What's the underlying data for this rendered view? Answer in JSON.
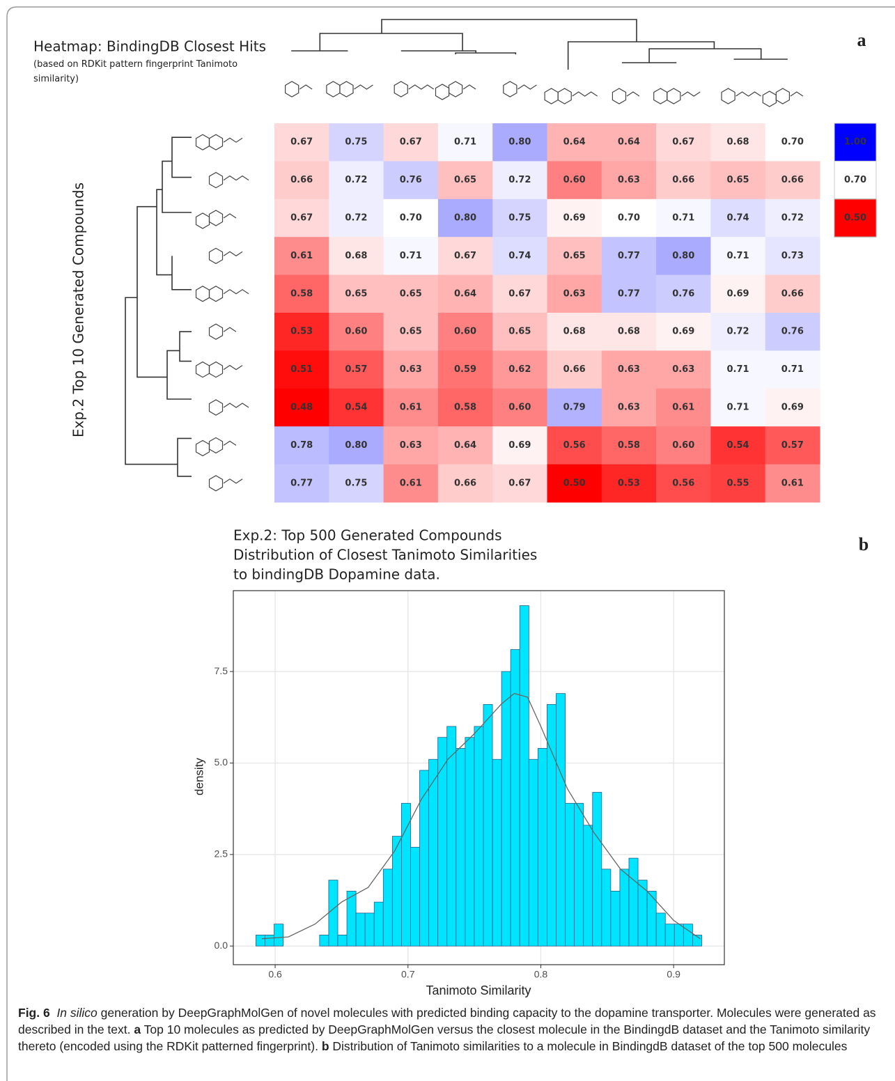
{
  "chart_data": [
    {
      "type": "heatmap",
      "title": "Heatmap: BindingDB Closest Hits",
      "subtitle": "(based on RDKit pattern fingerprint Tanimoto similarity)",
      "y_label": "Exp.2 Top 10 Generated Compounds",
      "values": [
        [
          0.67,
          0.75,
          0.67,
          0.71,
          0.8,
          0.64,
          0.64,
          0.67,
          0.68,
          0.7
        ],
        [
          0.66,
          0.72,
          0.76,
          0.65,
          0.72,
          0.6,
          0.63,
          0.66,
          0.65,
          0.66
        ],
        [
          0.67,
          0.72,
          0.7,
          0.8,
          0.75,
          0.69,
          0.7,
          0.71,
          0.74,
          0.72
        ],
        [
          0.61,
          0.68,
          0.71,
          0.67,
          0.74,
          0.65,
          0.77,
          0.8,
          0.71,
          0.73
        ],
        [
          0.58,
          0.65,
          0.65,
          0.64,
          0.67,
          0.63,
          0.77,
          0.76,
          0.69,
          0.66
        ],
        [
          0.53,
          0.6,
          0.65,
          0.6,
          0.65,
          0.68,
          0.68,
          0.69,
          0.72,
          0.76
        ],
        [
          0.51,
          0.57,
          0.63,
          0.59,
          0.62,
          0.66,
          0.63,
          0.63,
          0.71,
          0.71
        ],
        [
          0.48,
          0.54,
          0.61,
          0.58,
          0.6,
          0.79,
          0.63,
          0.61,
          0.71,
          0.69
        ],
        [
          0.78,
          0.8,
          0.63,
          0.64,
          0.69,
          0.56,
          0.58,
          0.6,
          0.54,
          0.57
        ],
        [
          0.77,
          0.75,
          0.61,
          0.66,
          0.67,
          0.5,
          0.53,
          0.56,
          0.55,
          0.61
        ]
      ],
      "value_labels": [
        [
          "0.67",
          "0.75",
          "0.67",
          "0.71",
          "0.80",
          "0.64",
          "0.64",
          "0.67",
          "0.68",
          "0.70"
        ],
        [
          "0.66",
          "0.72",
          "0.76",
          "0.65",
          "0.72",
          "0.60",
          "0.63",
          "0.66",
          "0.65",
          "0.66"
        ],
        [
          "0.67",
          "0.72",
          "0.70",
          "0.80",
          "0.75",
          "0.69",
          "0.70",
          "0.71",
          "0.74",
          "0.72"
        ],
        [
          "0.61",
          "0.68",
          "0.71",
          "0.67",
          "0.74",
          "0.65",
          "0.77",
          "0.80",
          "0.71",
          "0.73"
        ],
        [
          "0.58",
          "0.65",
          "0.65",
          "0.64",
          "0.67",
          "0.63",
          "0.77",
          "0.76",
          "0.69",
          "0.66"
        ],
        [
          "0.53",
          "0.60",
          "0.65",
          "0.60",
          "0.65",
          "0.68",
          "0.68",
          "0.69",
          "0.72",
          "0.76"
        ],
        [
          "0.51",
          "0.57",
          "0.63",
          "0.59",
          "0.62",
          "0.66",
          "0.63",
          "0.63",
          "0.71",
          "0.71"
        ],
        [
          "0.48",
          "0.54",
          "0.61",
          "0.58",
          "0.60",
          "0.79",
          "0.63",
          "0.61",
          "0.71",
          "0.69"
        ],
        [
          "0.78",
          "0.80",
          "0.63",
          "0.64",
          "0.69",
          "0.56",
          "0.58",
          "0.60",
          "0.54",
          "0.57"
        ],
        [
          "0.77",
          "0.75",
          "0.61",
          "0.66",
          "0.67",
          "0.50",
          "0.53",
          "0.56",
          "0.55",
          "0.61"
        ]
      ],
      "colorscale": {
        "ticks": [
          {
            "value": 1,
            "label": "1.00"
          },
          {
            "value": 0.7,
            "label": "0.70"
          },
          {
            "value": 0.5,
            "label": "0.50"
          }
        ],
        "colors": [
          "#0000ff",
          "#ffffff",
          "#ff0000"
        ]
      }
    },
    {
      "type": "histogram",
      "title": [
        "Exp.2: Top 500 Generated Compounds",
        "Distribution of Closest Tanimoto Similarities",
        "to bindingDB Dopamine data."
      ],
      "x_label": "Tanimoto Similarity",
      "y_label": "density",
      "bins": [
        0.5855,
        0.59235,
        0.5992,
        0.60605,
        0.6129,
        0.61975,
        0.6266,
        0.63345,
        0.6403,
        0.64715,
        0.654,
        0.66085,
        0.6677,
        0.67455,
        0.6814,
        0.68825,
        0.6951,
        0.70195,
        0.7088,
        0.71565,
        0.7225,
        0.72935,
        0.7362,
        0.74305,
        0.7499,
        0.75675,
        0.7636,
        0.77045,
        0.7773,
        0.78415,
        0.791,
        0.79785,
        0.8047,
        0.81155,
        0.8184,
        0.82525,
        0.8321,
        0.83895,
        0.8458,
        0.85265,
        0.8595,
        0.86635,
        0.8732,
        0.88005,
        0.8869,
        0.89375,
        0.9006,
        0.90745,
        0.9143,
        0.92115
      ],
      "values": [
        0.3,
        0.3,
        0.6,
        0,
        0,
        0,
        0,
        0.3,
        1.8,
        0.3,
        1.5,
        0.9,
        0.9,
        1.2,
        2.1,
        3.0,
        3.9,
        2.7,
        4.8,
        5.1,
        5.7,
        6.0,
        5.4,
        5.7,
        6.0,
        6.6,
        5.1,
        7.5,
        8.1,
        9.3,
        5.1,
        5.4,
        6.6,
        6.9,
        3.9,
        3.9,
        3.3,
        4.2,
        2.1,
        1.5,
        2.1,
        2.4,
        1.8,
        1.5,
        0.9,
        0.6,
        0.6,
        0.6,
        0.3
      ],
      "color": "#00e5ff",
      "edge_color": "#1f5f8b",
      "density_curve": {
        "color": "#666666",
        "x": [
          0.59,
          0.61,
          0.63,
          0.65,
          0.67,
          0.69,
          0.71,
          0.73,
          0.75,
          0.77,
          0.78,
          0.79,
          0.8,
          0.82,
          0.84,
          0.86,
          0.88,
          0.9,
          0.92
        ],
        "values": [
          0.2,
          0.25,
          0.6,
          1.2,
          1.6,
          2.6,
          4.0,
          5.1,
          5.8,
          6.6,
          6.9,
          6.8,
          6.0,
          4.3,
          3.1,
          2.1,
          1.5,
          0.7,
          0.2
        ]
      },
      "xlim": [
        0.5685,
        0.9382
      ],
      "ylim": [
        -0.51,
        9.71
      ],
      "xticks": [
        0.6,
        0.7,
        0.8,
        0.9
      ],
      "yticks": [
        {
          "value": 0,
          "label": "0.0"
        },
        2.5,
        {
          "value": 5,
          "label": "5.0"
        },
        7.5
      ],
      "grid": true
    }
  ],
  "panel_labels": [
    "a",
    "b"
  ],
  "caption": {
    "label": "Fig. 6",
    "italic": "In silico",
    "text1": "generation by DeepGraphMolGen of novel molecules with predicted binding capacity to the dopamine transporter. Molecules were generated as described in the text.",
    "a": "a",
    "text2": "Top 10 molecules as predicted by DeepGraphMolGen versus the closest molecule in the BindingdB dataset and the Tanimoto similarity thereto (encoded using the RDKit patterned fingerprint).",
    "b": "b",
    "text3": "Distribution of Tanimoto similarities to a molecule in BindingdB dataset of the top 500 molecules"
  }
}
